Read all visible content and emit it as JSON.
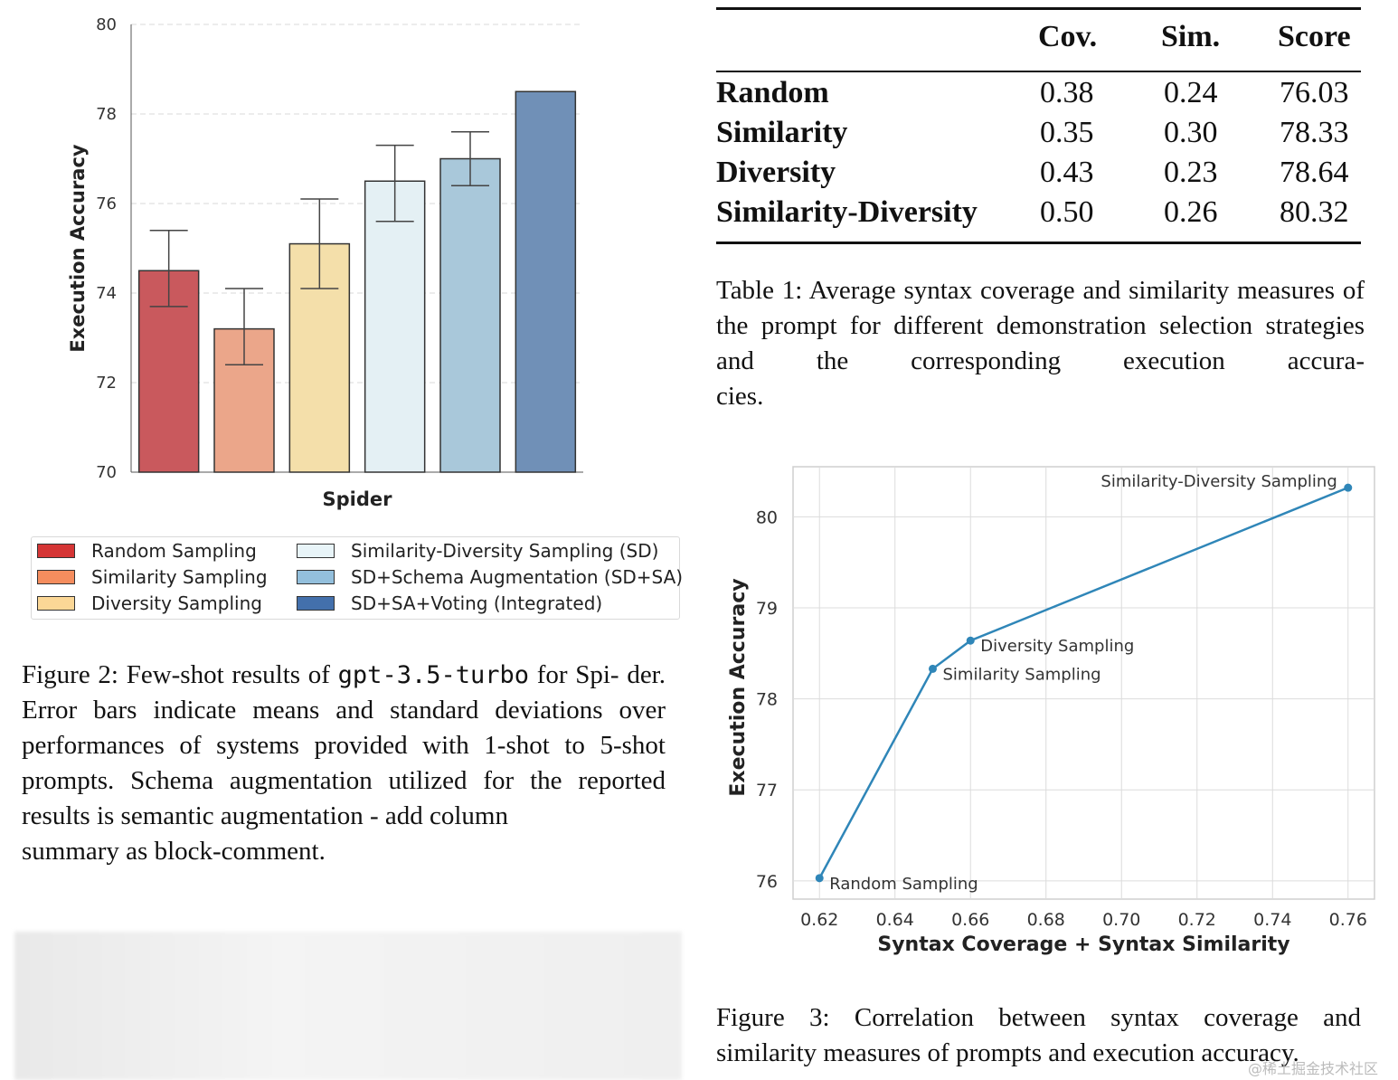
{
  "figure2": {
    "chart_data": {
      "type": "bar",
      "xlabel": "Spider",
      "ylabel": "Execution Accuracy",
      "ylim": [
        70,
        80
      ],
      "yticks": [
        70,
        72,
        74,
        76,
        78,
        80
      ],
      "grid": true,
      "legend_position": "bottom",
      "series": [
        {
          "name": "Random Sampling",
          "value": 74.5,
          "err_low": 73.7,
          "err_high": 75.4,
          "color": "#c9595d"
        },
        {
          "name": "Similarity Sampling",
          "value": 73.2,
          "err_low": 72.4,
          "err_high": 74.1,
          "color": "#eba68a"
        },
        {
          "name": "Diversity Sampling",
          "value": 75.1,
          "err_low": 74.1,
          "err_high": 76.1,
          "color": "#f4dfaa"
        },
        {
          "name": "Similarity-Diversity Sampling (SD)",
          "value": 76.5,
          "err_low": 75.6,
          "err_high": 77.3,
          "color": "#e4f0f4"
        },
        {
          "name": "SD+Schema Augmentation (SD+SA)",
          "value": 77.0,
          "err_low": 76.4,
          "err_high": 77.6,
          "color": "#a9c8da"
        },
        {
          "name": "SD+SA+Voting (Integrated)",
          "value": 78.5,
          "err_low": null,
          "err_high": null,
          "color": "#7090b7"
        }
      ],
      "legend_colors": [
        "#d53535",
        "#f58d5e",
        "#fbd796",
        "#e8f4f8",
        "#93bfdc",
        "#4370ac"
      ]
    },
    "caption": {
      "lines": [
        "Figure 2: Few-shot results of ",
        "gpt-3.5-turbo",
        " for Spi-"
      ],
      "rest": "der. Error bars indicate means and standard deviations over performances of systems provided with 1-shot to 5-shot prompts. Schema augmentation utilized for the reported results is semantic augmentation - add column",
      "last": "summary as block-comment."
    }
  },
  "table1": {
    "headers": [
      "Cov.",
      "Sim.",
      "Score"
    ],
    "rows": [
      {
        "label": "Random",
        "cov": "0.38",
        "sim": "0.24",
        "score": "76.03"
      },
      {
        "label": "Similarity",
        "cov": "0.35",
        "sim": "0.30",
        "score": "78.33"
      },
      {
        "label": "Diversity",
        "cov": "0.43",
        "sim": "0.23",
        "score": "78.64"
      },
      {
        "label": "Similarity-Diversity",
        "cov": "0.50",
        "sim": "0.26",
        "score": "80.32"
      }
    ],
    "caption": {
      "body": "Table 1: Average syntax coverage and similarity measures of the prompt for different demonstration selection strategies and the corresponding execution accura-",
      "last": "cies."
    }
  },
  "figure3": {
    "chart_data": {
      "type": "line",
      "xlabel": "Syntax Coverage + Syntax Similarity",
      "ylabel": "Execution Accuracy",
      "xlim": [
        0.613,
        0.767
      ],
      "ylim": [
        75.8,
        80.55
      ],
      "xticks": [
        "0.62",
        "0.64",
        "0.66",
        "0.68",
        "0.70",
        "0.72",
        "0.74",
        "0.76"
      ],
      "yticks": [
        "76",
        "77",
        "78",
        "79",
        "80"
      ],
      "grid": true,
      "color": "#2f86b8",
      "points": [
        {
          "x": 0.62,
          "y": 76.03,
          "label": "Random Sampling"
        },
        {
          "x": 0.65,
          "y": 78.33,
          "label": "Similarity Sampling"
        },
        {
          "x": 0.66,
          "y": 78.64,
          "label": "Diversity Sampling"
        },
        {
          "x": 0.76,
          "y": 80.32,
          "label": "Similarity-Diversity Sampling"
        }
      ]
    },
    "caption": {
      "body": "Figure 3: Correlation between syntax coverage and",
      "last": "similarity measures of prompts and execution accuracy."
    }
  },
  "watermark": "@稀土掘金技术社区"
}
